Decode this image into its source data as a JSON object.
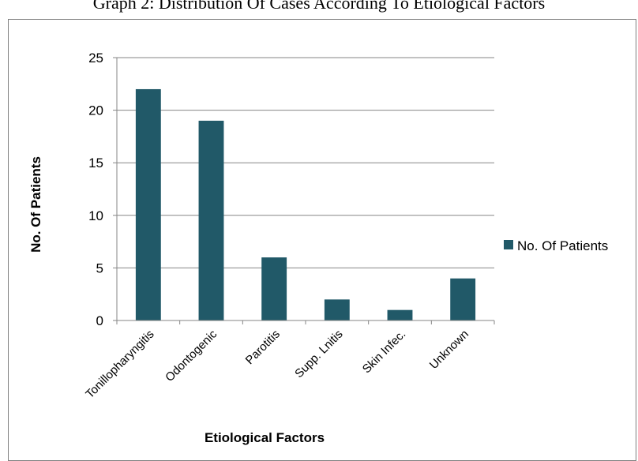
{
  "page_title": "Graph 2: Distribution Of Cases According To Etiological Factors",
  "chart_data": {
    "type": "bar",
    "title": "",
    "categories": [
      "Tonillopharyngitis",
      "Odontogenic",
      "Parotitis",
      "Supp. Lnitis",
      "Skin Infec.",
      "Unknown"
    ],
    "series": [
      {
        "name": "No. Of Patients",
        "values": [
          22,
          19,
          6,
          2,
          1,
          4
        ],
        "color": "#215968"
      }
    ],
    "xlabel": "Etiological Factors",
    "ylabel": "No. Of Patients",
    "ylim": [
      0,
      25
    ],
    "yticks": [
      "0",
      "5",
      "10",
      "15",
      "20",
      "25"
    ],
    "grid": true,
    "legend_position": "right"
  }
}
